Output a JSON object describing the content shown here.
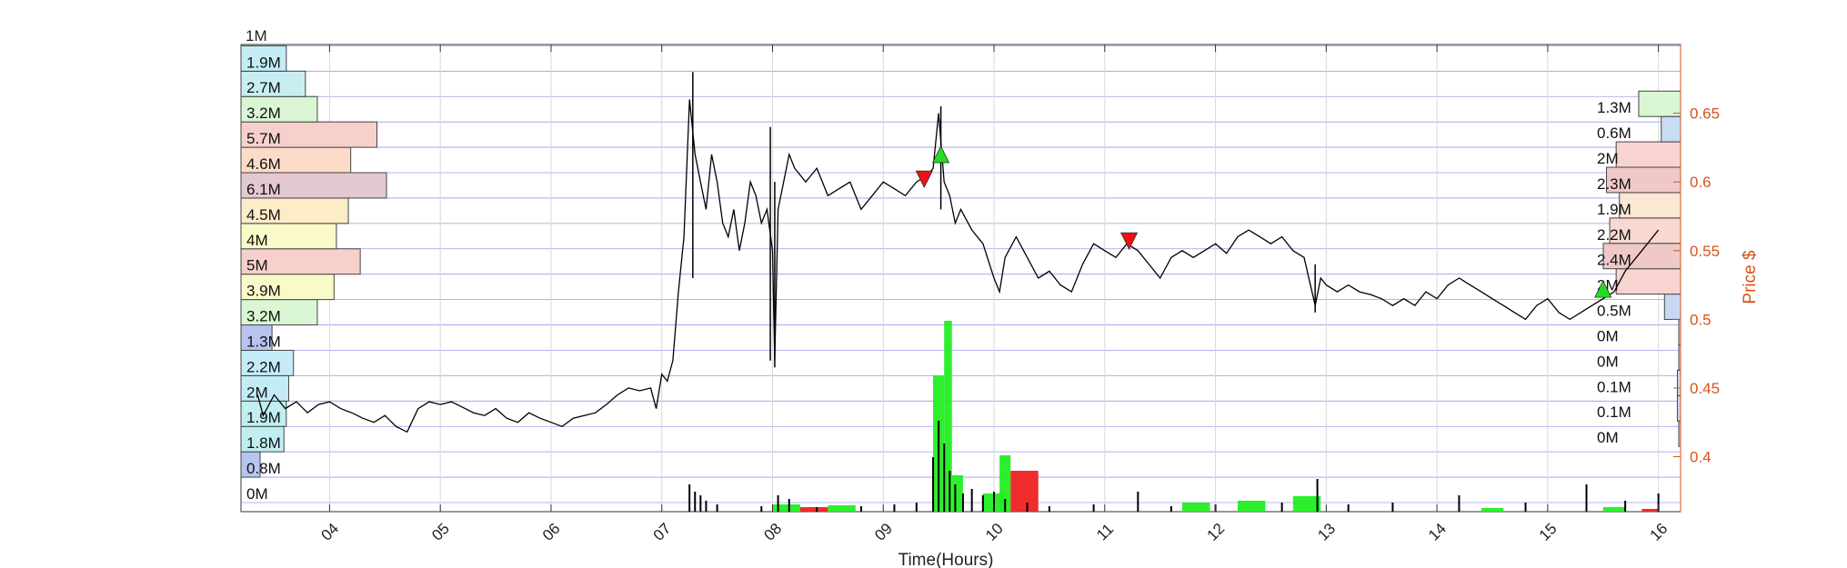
{
  "chart_data": {
    "type": "line",
    "xlabel": "Time(Hours)",
    "ylabel_right": "Price $",
    "x_ticks": [
      "04",
      "05",
      "06",
      "07",
      "08",
      "09",
      "10",
      "11",
      "12",
      "13",
      "14",
      "15",
      "16"
    ],
    "y_ticks_right": [
      0.4,
      0.45,
      0.5,
      0.55,
      0.6,
      0.65
    ],
    "xlim": [
      3.2,
      16.2
    ],
    "ylim": [
      0.36,
      0.7
    ],
    "grid": true,
    "volume_axis_top_label": "1M",
    "left_volume_profile": {
      "labels": [
        "0M",
        "0.8M",
        "1.8M",
        "1.9M",
        "2M",
        "2.2M",
        "1.3M",
        "3.2M",
        "3.9M",
        "5M",
        "4M",
        "4.5M",
        "6.1M",
        "4.6M",
        "5.7M",
        "3.2M",
        "2.7M",
        "1.9M"
      ],
      "values": [
        0,
        0.8,
        1.8,
        1.9,
        2,
        2.2,
        1.3,
        3.2,
        3.9,
        5,
        4,
        4.5,
        6.1,
        4.6,
        5.7,
        3.2,
        2.7,
        1.9
      ],
      "colors": [
        "#ffffff",
        "#b8c4f0",
        "#c0eef2",
        "#c0eef2",
        "#c4ecf6",
        "#c4ecf6",
        "#b8c4f0",
        "#daf6d4",
        "#fafac8",
        "#f7d0cc",
        "#fafac8",
        "#fcecc8",
        "#e4c8d0",
        "#fcdcc8",
        "#f7d0cc",
        "#daf6d4",
        "#c8eef2",
        "#c4ecf6"
      ]
    },
    "right_volume_profile": {
      "labels": [
        "0M",
        "0.1M",
        "0.1M",
        "0M",
        "0M",
        "0.5M",
        "2M",
        "2.4M",
        "2.2M",
        "1.9M",
        "2.3M",
        "2M",
        "0.6M",
        "1.3M"
      ],
      "values": [
        0,
        0.1,
        0.1,
        0,
        0,
        0.5,
        2,
        2.4,
        2.2,
        1.9,
        2.3,
        2,
        0.6,
        1.3
      ],
      "colors": [
        "#d4d4ec",
        "#d4d4ec",
        "#d4d4ec",
        "#d4d4ec",
        "#d4d4ec",
        "#c8d8f4",
        "#f8d4d0",
        "#f0c8c8",
        "#f8d8d0",
        "#fce6d4",
        "#f0c8c8",
        "#f8d4d0",
        "#c8dcf4",
        "#daf6d4"
      ]
    },
    "price_series": [
      [
        3.35,
        0.445
      ],
      [
        3.4,
        0.43
      ],
      [
        3.5,
        0.445
      ],
      [
        3.6,
        0.435
      ],
      [
        3.7,
        0.44
      ],
      [
        3.8,
        0.432
      ],
      [
        3.9,
        0.438
      ],
      [
        4.0,
        0.44
      ],
      [
        4.1,
        0.435
      ],
      [
        4.2,
        0.432
      ],
      [
        4.3,
        0.428
      ],
      [
        4.4,
        0.425
      ],
      [
        4.5,
        0.43
      ],
      [
        4.6,
        0.422
      ],
      [
        4.7,
        0.418
      ],
      [
        4.8,
        0.435
      ],
      [
        4.9,
        0.44
      ],
      [
        5.0,
        0.438
      ],
      [
        5.1,
        0.44
      ],
      [
        5.2,
        0.436
      ],
      [
        5.3,
        0.432
      ],
      [
        5.4,
        0.43
      ],
      [
        5.5,
        0.435
      ],
      [
        5.6,
        0.428
      ],
      [
        5.7,
        0.425
      ],
      [
        5.8,
        0.432
      ],
      [
        5.9,
        0.428
      ],
      [
        6.0,
        0.425
      ],
      [
        6.1,
        0.422
      ],
      [
        6.2,
        0.428
      ],
      [
        6.3,
        0.43
      ],
      [
        6.4,
        0.432
      ],
      [
        6.5,
        0.438
      ],
      [
        6.6,
        0.445
      ],
      [
        6.7,
        0.45
      ],
      [
        6.8,
        0.448
      ],
      [
        6.9,
        0.45
      ],
      [
        6.95,
        0.435
      ],
      [
        7.0,
        0.46
      ],
      [
        7.05,
        0.455
      ],
      [
        7.1,
        0.47
      ],
      [
        7.15,
        0.52
      ],
      [
        7.2,
        0.56
      ],
      [
        7.25,
        0.66
      ],
      [
        7.3,
        0.62
      ],
      [
        7.35,
        0.6
      ],
      [
        7.4,
        0.58
      ],
      [
        7.45,
        0.62
      ],
      [
        7.5,
        0.6
      ],
      [
        7.55,
        0.57
      ],
      [
        7.6,
        0.56
      ],
      [
        7.65,
        0.58
      ],
      [
        7.7,
        0.55
      ],
      [
        7.75,
        0.57
      ],
      [
        7.8,
        0.6
      ],
      [
        7.85,
        0.59
      ],
      [
        7.9,
        0.57
      ],
      [
        7.95,
        0.58
      ],
      [
        8.0,
        0.55
      ],
      [
        8.02,
        0.47
      ],
      [
        8.05,
        0.58
      ],
      [
        8.1,
        0.6
      ],
      [
        8.15,
        0.62
      ],
      [
        8.2,
        0.61
      ],
      [
        8.3,
        0.6
      ],
      [
        8.4,
        0.61
      ],
      [
        8.5,
        0.59
      ],
      [
        8.6,
        0.595
      ],
      [
        8.7,
        0.6
      ],
      [
        8.8,
        0.58
      ],
      [
        8.9,
        0.59
      ],
      [
        9.0,
        0.6
      ],
      [
        9.1,
        0.595
      ],
      [
        9.2,
        0.59
      ],
      [
        9.3,
        0.6
      ],
      [
        9.4,
        0.605
      ],
      [
        9.45,
        0.61
      ],
      [
        9.5,
        0.65
      ],
      [
        9.55,
        0.6
      ],
      [
        9.6,
        0.59
      ],
      [
        9.65,
        0.57
      ],
      [
        9.7,
        0.58
      ],
      [
        9.8,
        0.565
      ],
      [
        9.9,
        0.555
      ],
      [
        10.0,
        0.53
      ],
      [
        10.05,
        0.52
      ],
      [
        10.1,
        0.545
      ],
      [
        10.2,
        0.56
      ],
      [
        10.3,
        0.545
      ],
      [
        10.4,
        0.53
      ],
      [
        10.5,
        0.535
      ],
      [
        10.6,
        0.525
      ],
      [
        10.7,
        0.52
      ],
      [
        10.8,
        0.54
      ],
      [
        10.9,
        0.555
      ],
      [
        11.0,
        0.55
      ],
      [
        11.1,
        0.545
      ],
      [
        11.2,
        0.555
      ],
      [
        11.3,
        0.55
      ],
      [
        11.4,
        0.54
      ],
      [
        11.5,
        0.53
      ],
      [
        11.6,
        0.545
      ],
      [
        11.7,
        0.55
      ],
      [
        11.8,
        0.545
      ],
      [
        11.9,
        0.55
      ],
      [
        12.0,
        0.555
      ],
      [
        12.1,
        0.548
      ],
      [
        12.2,
        0.56
      ],
      [
        12.3,
        0.565
      ],
      [
        12.4,
        0.56
      ],
      [
        12.5,
        0.555
      ],
      [
        12.6,
        0.56
      ],
      [
        12.7,
        0.55
      ],
      [
        12.8,
        0.545
      ],
      [
        12.9,
        0.51
      ],
      [
        12.95,
        0.53
      ],
      [
        13.0,
        0.525
      ],
      [
        13.1,
        0.52
      ],
      [
        13.2,
        0.525
      ],
      [
        13.3,
        0.52
      ],
      [
        13.4,
        0.518
      ],
      [
        13.5,
        0.515
      ],
      [
        13.6,
        0.51
      ],
      [
        13.7,
        0.515
      ],
      [
        13.8,
        0.51
      ],
      [
        13.9,
        0.52
      ],
      [
        14.0,
        0.515
      ],
      [
        14.1,
        0.525
      ],
      [
        14.2,
        0.53
      ],
      [
        14.3,
        0.525
      ],
      [
        14.4,
        0.52
      ],
      [
        14.5,
        0.515
      ],
      [
        14.6,
        0.51
      ],
      [
        14.7,
        0.505
      ],
      [
        14.8,
        0.5
      ],
      [
        14.9,
        0.51
      ],
      [
        15.0,
        0.515
      ],
      [
        15.1,
        0.505
      ],
      [
        15.2,
        0.5
      ],
      [
        15.3,
        0.505
      ],
      [
        15.4,
        0.51
      ],
      [
        15.5,
        0.515
      ],
      [
        15.6,
        0.52
      ],
      [
        15.7,
        0.535
      ],
      [
        15.8,
        0.545
      ],
      [
        15.9,
        0.555
      ],
      [
        16.0,
        0.565
      ]
    ],
    "price_spikes": [
      {
        "x": 7.28,
        "low": 0.53,
        "high": 0.68
      },
      {
        "x": 7.98,
        "low": 0.47,
        "high": 0.64
      },
      {
        "x": 8.02,
        "low": 0.465,
        "high": 0.6
      },
      {
        "x": 9.52,
        "low": 0.58,
        "high": 0.655
      },
      {
        "x": 12.9,
        "low": 0.505,
        "high": 0.54
      }
    ],
    "markers": [
      {
        "type": "buy",
        "x": 9.52,
        "y": 0.62,
        "color": "#22dd22"
      },
      {
        "type": "sell",
        "x": 9.37,
        "y": 0.602,
        "color": "#ee1111"
      },
      {
        "type": "sell",
        "x": 11.22,
        "y": 0.557,
        "color": "#ee1111"
      },
      {
        "type": "buy",
        "x": 15.5,
        "y": 0.522,
        "color": "#22dd22"
      }
    ],
    "volume_bars_colored": [
      {
        "x0": 8.0,
        "x1": 8.25,
        "h": 8,
        "color": "#22ee22"
      },
      {
        "x0": 8.25,
        "x1": 8.5,
        "h": 5,
        "color": "#ee2222"
      },
      {
        "x0": 8.5,
        "x1": 8.75,
        "h": 7,
        "color": "#22ee22"
      },
      {
        "x0": 9.45,
        "x1": 9.55,
        "h": 150,
        "color": "#22ee22"
      },
      {
        "x0": 9.55,
        "x1": 9.62,
        "h": 210,
        "color": "#22ee22"
      },
      {
        "x0": 9.62,
        "x1": 9.72,
        "h": 40,
        "color": "#22ee22"
      },
      {
        "x0": 9.9,
        "x1": 10.1,
        "h": 20,
        "color": "#22ee22"
      },
      {
        "x0": 10.05,
        "x1": 10.15,
        "h": 62,
        "color": "#22ee22"
      },
      {
        "x0": 10.15,
        "x1": 10.4,
        "h": 45,
        "color": "#ee2222"
      },
      {
        "x0": 11.7,
        "x1": 11.95,
        "h": 10,
        "color": "#22ee22"
      },
      {
        "x0": 12.2,
        "x1": 12.45,
        "h": 12,
        "color": "#22ee22"
      },
      {
        "x0": 12.7,
        "x1": 12.95,
        "h": 17,
        "color": "#22ee22"
      },
      {
        "x0": 14.4,
        "x1": 14.6,
        "h": 4,
        "color": "#22ee22"
      },
      {
        "x0": 15.5,
        "x1": 15.7,
        "h": 5,
        "color": "#22ee22"
      },
      {
        "x0": 15.85,
        "x1": 16.0,
        "h": 3,
        "color": "#ee2222"
      }
    ],
    "volume_spikes_black": [
      {
        "x": 7.25,
        "h": 30
      },
      {
        "x": 7.3,
        "h": 22
      },
      {
        "x": 7.35,
        "h": 18
      },
      {
        "x": 7.4,
        "h": 12
      },
      {
        "x": 7.5,
        "h": 8
      },
      {
        "x": 7.9,
        "h": 6
      },
      {
        "x": 8.05,
        "h": 18
      },
      {
        "x": 8.15,
        "h": 14
      },
      {
        "x": 8.4,
        "h": 5
      },
      {
        "x": 8.8,
        "h": 6
      },
      {
        "x": 9.1,
        "h": 8
      },
      {
        "x": 9.3,
        "h": 10
      },
      {
        "x": 9.45,
        "h": 60
      },
      {
        "x": 9.5,
        "h": 100
      },
      {
        "x": 9.55,
        "h": 75
      },
      {
        "x": 9.6,
        "h": 45
      },
      {
        "x": 9.65,
        "h": 30
      },
      {
        "x": 9.72,
        "h": 20
      },
      {
        "x": 9.8,
        "h": 25
      },
      {
        "x": 9.9,
        "h": 18
      },
      {
        "x": 10.0,
        "h": 22
      },
      {
        "x": 10.1,
        "h": 14
      },
      {
        "x": 10.3,
        "h": 10
      },
      {
        "x": 10.5,
        "h": 6
      },
      {
        "x": 10.9,
        "h": 8
      },
      {
        "x": 11.3,
        "h": 22
      },
      {
        "x": 11.6,
        "h": 6
      },
      {
        "x": 12.0,
        "h": 8
      },
      {
        "x": 12.6,
        "h": 10
      },
      {
        "x": 12.92,
        "h": 36
      },
      {
        "x": 13.2,
        "h": 8
      },
      {
        "x": 13.6,
        "h": 10
      },
      {
        "x": 14.2,
        "h": 18
      },
      {
        "x": 14.8,
        "h": 10
      },
      {
        "x": 15.35,
        "h": 30
      },
      {
        "x": 15.7,
        "h": 12
      },
      {
        "x": 16.0,
        "h": 20
      }
    ]
  }
}
